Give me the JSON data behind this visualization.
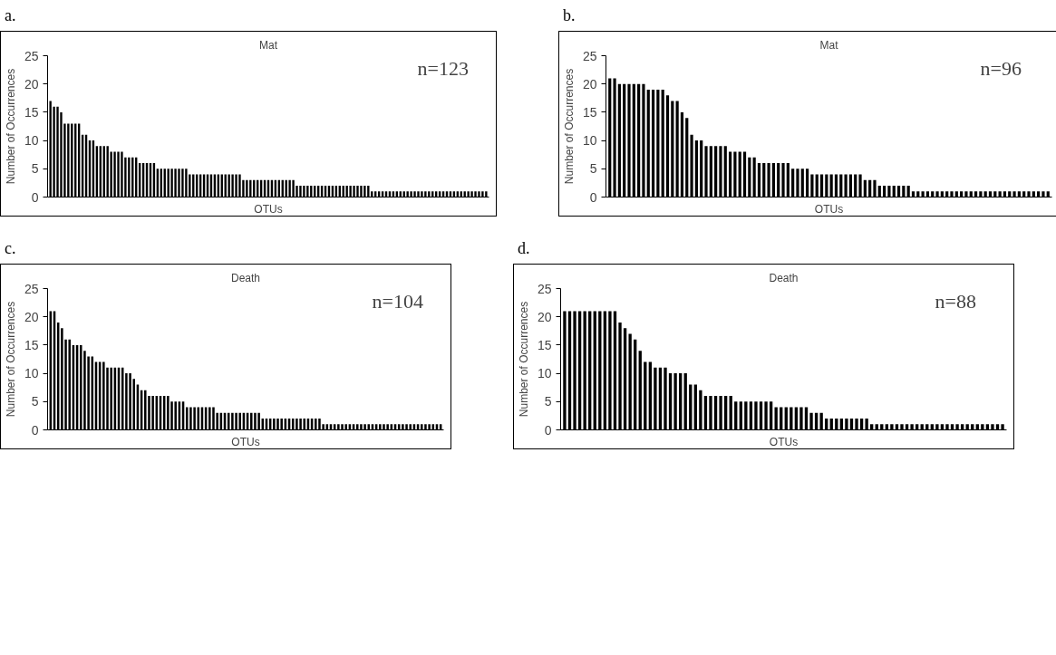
{
  "chart_data": [
    {
      "type": "bar",
      "title": "Mat",
      "xlabel": "OTUs",
      "ylabel": "Number of Occurrences",
      "annotations": [
        "a.",
        "n=123"
      ],
      "color": "#000000",
      "ylim": [
        0,
        25
      ],
      "yticks": [
        0,
        5,
        10,
        15,
        20,
        25
      ],
      "tick_labels": "y",
      "categories": [
        null,
        null,
        null,
        null,
        null,
        null,
        null,
        null,
        null,
        null,
        null,
        null,
        null,
        null,
        null,
        null,
        null,
        null,
        null,
        null,
        null,
        null,
        null,
        null,
        null,
        null,
        null,
        null,
        null,
        null,
        null,
        null,
        null,
        null,
        null,
        null,
        null,
        null,
        null,
        null,
        null,
        null,
        null,
        null,
        null,
        null,
        null,
        null,
        null,
        null,
        null,
        null,
        null,
        null,
        null,
        null,
        null,
        null,
        null,
        null,
        null,
        null,
        null,
        null,
        null,
        null,
        null,
        null,
        null,
        null,
        null,
        null,
        null,
        null,
        null,
        null,
        null,
        null,
        null,
        null,
        null,
        null,
        null,
        null,
        null,
        null,
        null,
        null,
        null,
        null,
        null,
        null,
        null,
        null,
        null,
        null,
        null,
        null,
        null,
        null,
        null,
        null,
        null,
        null,
        null,
        null,
        null,
        null,
        null,
        null,
        null,
        null,
        null,
        null,
        null,
        null,
        null,
        null,
        null,
        null,
        null,
        null,
        null
      ],
      "values": [
        17,
        16,
        16,
        15,
        13,
        13,
        13,
        13,
        13,
        11,
        11,
        10,
        10,
        9,
        9,
        9,
        9,
        8,
        8,
        8,
        8,
        7,
        7,
        7,
        7,
        6,
        6,
        6,
        6,
        6,
        5,
        5,
        5,
        5,
        5,
        5,
        5,
        5,
        5,
        4,
        4,
        4,
        4,
        4,
        4,
        4,
        4,
        4,
        4,
        4,
        4,
        4,
        4,
        4,
        3,
        3,
        3,
        3,
        3,
        3,
        3,
        3,
        3,
        3,
        3,
        3,
        3,
        3,
        3,
        2,
        2,
        2,
        2,
        2,
        2,
        2,
        2,
        2,
        2,
        2,
        2,
        2,
        2,
        2,
        2,
        2,
        2,
        2,
        2,
        2,
        1,
        1,
        1,
        1,
        1,
        1,
        1,
        1,
        1,
        1,
        1,
        1,
        1,
        1,
        1,
        1,
        1,
        1,
        1,
        1,
        1,
        1,
        1,
        1,
        1,
        1,
        1,
        1,
        1,
        1,
        1,
        1,
        1
      ]
    },
    {
      "type": "bar",
      "title": "Mat",
      "xlabel": "OTUs",
      "ylabel": "Number of Occurrences",
      "annotations": [
        "b.",
        "n=96"
      ],
      "color": "#000000",
      "ylim": [
        0,
        25
      ],
      "yticks": [
        0,
        5,
        10,
        15,
        20,
        25
      ],
      "tick_labels": "y",
      "categories": [
        null,
        null,
        null,
        null,
        null,
        null,
        null,
        null,
        null,
        null,
        null,
        null,
        null,
        null,
        null,
        null,
        null,
        null,
        null,
        null,
        null,
        null,
        null,
        null,
        null,
        null,
        null,
        null,
        null,
        null,
        null,
        null,
        null,
        null,
        null,
        null,
        null,
        null,
        null,
        null,
        null,
        null,
        null,
        null,
        null,
        null,
        null,
        null,
        null,
        null,
        null,
        null,
        null,
        null,
        null,
        null,
        null,
        null,
        null,
        null,
        null,
        null,
        null,
        null,
        null,
        null,
        null,
        null,
        null,
        null,
        null,
        null,
        null,
        null,
        null,
        null,
        null,
        null,
        null,
        null,
        null,
        null,
        null,
        null,
        null,
        null,
        null,
        null,
        null,
        null,
        null,
        null
      ],
      "values": [
        21,
        21,
        20,
        20,
        20,
        20,
        20,
        20,
        19,
        19,
        19,
        19,
        18,
        17,
        17,
        15,
        14,
        11,
        10,
        10,
        9,
        9,
        9,
        9,
        9,
        8,
        8,
        8,
        8,
        7,
        7,
        6,
        6,
        6,
        6,
        6,
        6,
        6,
        5,
        5,
        5,
        5,
        4,
        4,
        4,
        4,
        4,
        4,
        4,
        4,
        4,
        4,
        4,
        3,
        3,
        3,
        2,
        2,
        2,
        2,
        2,
        2,
        2,
        1,
        1,
        1,
        1,
        1,
        1,
        1,
        1,
        1,
        1,
        1,
        1,
        1,
        1,
        1,
        1,
        1,
        1,
        1,
        1,
        1,
        1,
        1,
        1,
        1,
        1,
        1,
        1,
        1
      ]
    },
    {
      "type": "bar",
      "title": "Death",
      "xlabel": "OTUs",
      "ylabel": "Number of Occurrences",
      "annotations": [
        "c.",
        "n=104"
      ],
      "color": "#000000",
      "ylim": [
        0,
        25
      ],
      "yticks": [
        0,
        5,
        10,
        15,
        20,
        25
      ],
      "tick_labels": "y",
      "categories": [
        null,
        null,
        null,
        null,
        null,
        null,
        null,
        null,
        null,
        null,
        null,
        null,
        null,
        null,
        null,
        null,
        null,
        null,
        null,
        null,
        null,
        null,
        null,
        null,
        null,
        null,
        null,
        null,
        null,
        null,
        null,
        null,
        null,
        null,
        null,
        null,
        null,
        null,
        null,
        null,
        null,
        null,
        null,
        null,
        null,
        null,
        null,
        null,
        null,
        null,
        null,
        null,
        null,
        null,
        null,
        null,
        null,
        null,
        null,
        null,
        null,
        null,
        null,
        null,
        null,
        null,
        null,
        null,
        null,
        null,
        null,
        null,
        null,
        null,
        null,
        null,
        null,
        null,
        null,
        null,
        null,
        null,
        null,
        null,
        null,
        null,
        null,
        null,
        null,
        null,
        null,
        null,
        null,
        null,
        null,
        null,
        null,
        null,
        null,
        null,
        null,
        null,
        null,
        null
      ],
      "values": [
        21,
        21,
        19,
        18,
        16,
        16,
        15,
        15,
        15,
        14,
        13,
        13,
        12,
        12,
        12,
        11,
        11,
        11,
        11,
        11,
        10,
        10,
        9,
        8,
        7,
        7,
        6,
        6,
        6,
        6,
        6,
        6,
        5,
        5,
        5,
        5,
        4,
        4,
        4,
        4,
        4,
        4,
        4,
        4,
        3,
        3,
        3,
        3,
        3,
        3,
        3,
        3,
        3,
        3,
        3,
        3,
        2,
        2,
        2,
        2,
        2,
        2,
        2,
        2,
        2,
        2,
        2,
        2,
        2,
        2,
        2,
        2,
        1,
        1,
        1,
        1,
        1,
        1,
        1,
        1,
        1,
        1,
        1,
        1,
        1,
        1,
        1,
        1,
        1,
        1,
        1,
        1,
        1,
        1,
        1,
        1,
        1,
        1,
        1,
        1,
        1,
        1,
        1,
        1
      ]
    },
    {
      "type": "bar",
      "title": "Death",
      "xlabel": "OTUs",
      "ylabel": "Number of Occurrences",
      "annotations": [
        "d.",
        "n=88"
      ],
      "color": "#000000",
      "ylim": [
        0,
        25
      ],
      "yticks": [
        0,
        5,
        10,
        15,
        20,
        25
      ],
      "tick_labels": "y",
      "categories": [
        null,
        null,
        null,
        null,
        null,
        null,
        null,
        null,
        null,
        null,
        null,
        null,
        null,
        null,
        null,
        null,
        null,
        null,
        null,
        null,
        null,
        null,
        null,
        null,
        null,
        null,
        null,
        null,
        null,
        null,
        null,
        null,
        null,
        null,
        null,
        null,
        null,
        null,
        null,
        null,
        null,
        null,
        null,
        null,
        null,
        null,
        null,
        null,
        null,
        null,
        null,
        null,
        null,
        null,
        null,
        null,
        null,
        null,
        null,
        null,
        null,
        null,
        null,
        null,
        null,
        null,
        null,
        null,
        null,
        null,
        null,
        null,
        null,
        null,
        null,
        null,
        null,
        null,
        null,
        null,
        null,
        null,
        null,
        null,
        null,
        null,
        null,
        null
      ],
      "values": [
        21,
        21,
        21,
        21,
        21,
        21,
        21,
        21,
        21,
        21,
        21,
        19,
        18,
        17,
        16,
        14,
        12,
        12,
        11,
        11,
        11,
        10,
        10,
        10,
        10,
        8,
        8,
        7,
        6,
        6,
        6,
        6,
        6,
        6,
        5,
        5,
        5,
        5,
        5,
        5,
        5,
        5,
        4,
        4,
        4,
        4,
        4,
        4,
        4,
        3,
        3,
        3,
        2,
        2,
        2,
        2,
        2,
        2,
        2,
        2,
        2,
        1,
        1,
        1,
        1,
        1,
        1,
        1,
        1,
        1,
        1,
        1,
        1,
        1,
        1,
        1,
        1,
        1,
        1,
        1,
        1,
        1,
        1,
        1,
        1,
        1,
        1,
        1
      ]
    }
  ]
}
